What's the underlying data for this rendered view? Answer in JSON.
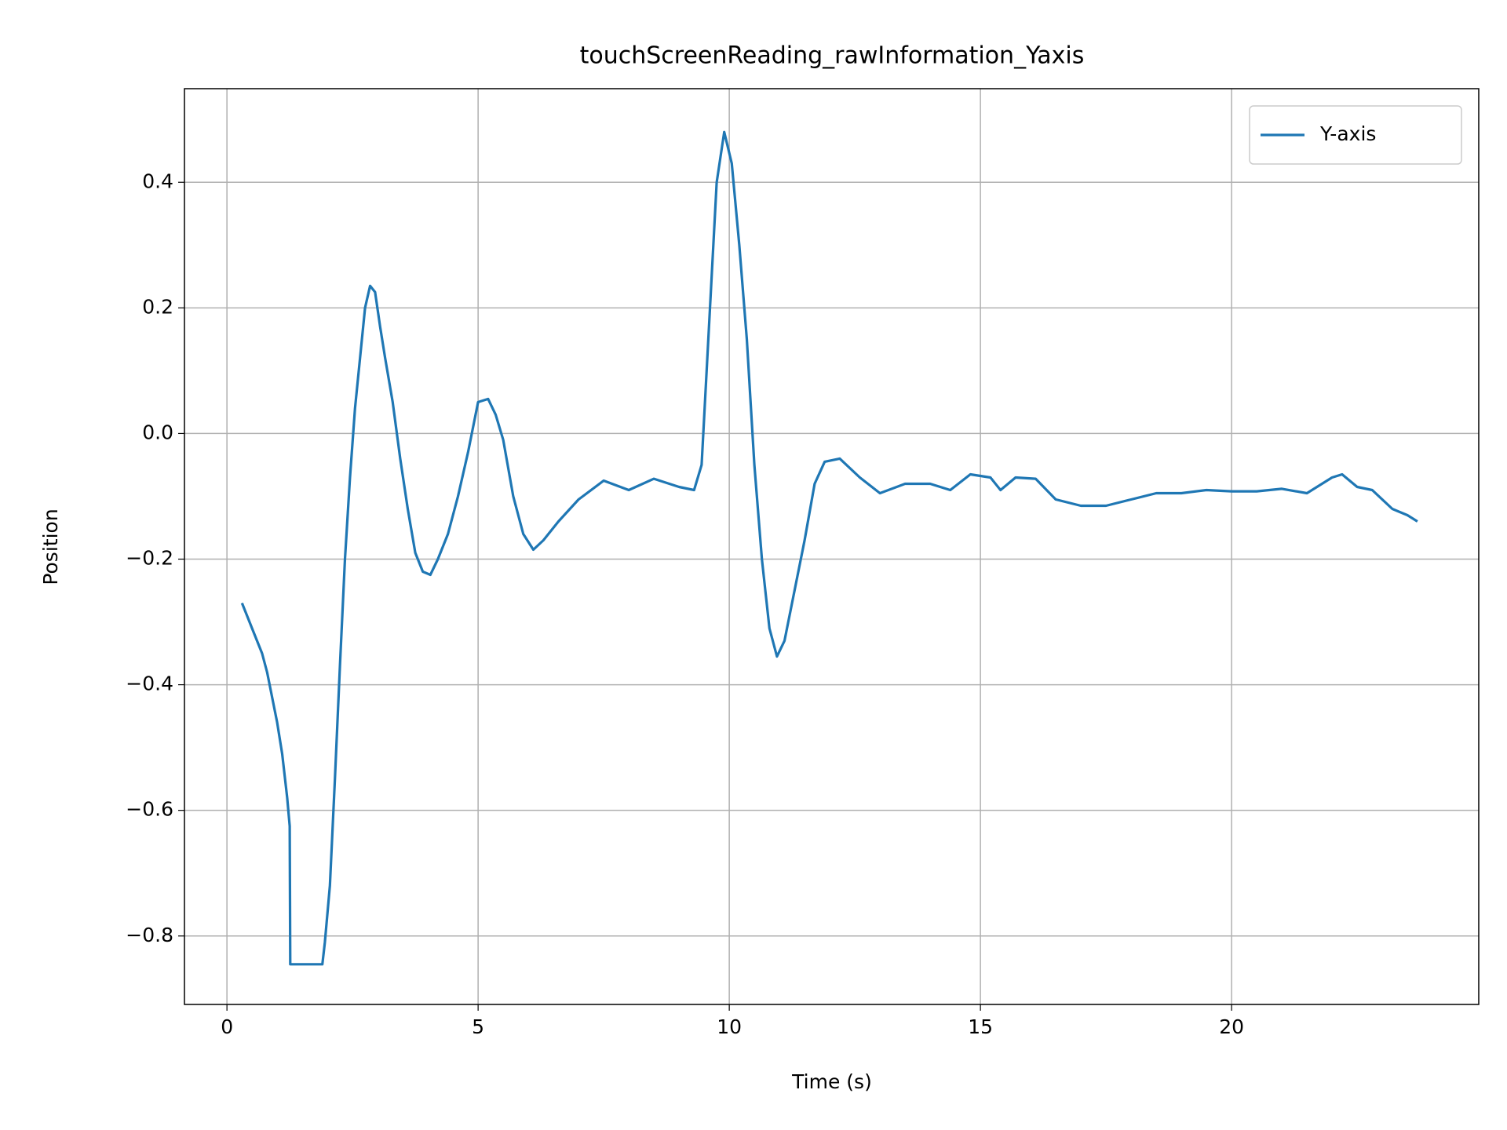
{
  "chart_data": {
    "type": "line",
    "title": "touchScreenReading_rawInformation_Yaxis",
    "x_label": "Time (s)",
    "y_label": "Position",
    "xlim": [
      -0.846,
      24.92
    ],
    "ylim": [
      -0.909,
      0.549
    ],
    "xticks": [
      0,
      5,
      10,
      15,
      20
    ],
    "yticks": [
      {
        "value": -0.8,
        "label": "−0.8"
      },
      {
        "value": -0.6,
        "label": "−0.6"
      },
      {
        "value": -0.4,
        "label": "−0.4"
      },
      {
        "value": -0.2,
        "label": "−0.2"
      },
      {
        "value": 0,
        "label": "0.0"
      },
      0.2,
      0.4
    ],
    "grid": true,
    "legend": "upper right",
    "x": [
      0.3,
      0.4,
      0.5,
      0.6,
      0.7,
      0.8,
      0.9,
      1.0,
      1.1,
      1.2,
      1.25,
      1.26,
      1.9,
      1.95,
      2.05,
      2.15,
      2.25,
      2.35,
      2.45,
      2.55,
      2.65,
      2.75,
      2.85,
      2.95,
      3.05,
      3.15,
      3.3,
      3.45,
      3.6,
      3.75,
      3.9,
      4.05,
      4.2,
      4.4,
      4.6,
      4.8,
      5.0,
      5.2,
      5.35,
      5.5,
      5.7,
      5.9,
      6.1,
      6.3,
      6.6,
      7.0,
      7.5,
      8.0,
      8.5,
      9.0,
      9.3,
      9.45,
      9.55,
      9.65,
      9.75,
      9.9,
      10.05,
      10.2,
      10.35,
      10.5,
      10.65,
      10.8,
      10.95,
      11.1,
      11.3,
      11.5,
      11.7,
      11.9,
      12.2,
      12.6,
      13.0,
      13.5,
      14.0,
      14.4,
      14.8,
      15.2,
      15.4,
      15.7,
      16.1,
      16.5,
      17.0,
      17.5,
      18.0,
      18.5,
      19.0,
      19.5,
      20.0,
      20.5,
      21.0,
      21.5,
      22.0,
      22.2,
      22.5,
      22.8,
      23.2,
      23.5,
      23.7
    ],
    "series": [
      {
        "name": "Y-axis",
        "color": "#1f77b4",
        "values": [
          -0.27,
          -0.29,
          -0.31,
          -0.33,
          -0.35,
          -0.38,
          -0.42,
          -0.46,
          -0.51,
          -0.58,
          -0.625,
          -0.845,
          -0.845,
          -0.81,
          -0.72,
          -0.55,
          -0.37,
          -0.2,
          -0.07,
          0.04,
          0.12,
          0.2,
          0.235,
          0.225,
          0.17,
          0.12,
          0.05,
          -0.04,
          -0.12,
          -0.19,
          -0.22,
          -0.225,
          -0.2,
          -0.16,
          -0.1,
          -0.03,
          0.05,
          0.055,
          0.03,
          -0.01,
          -0.1,
          -0.16,
          -0.185,
          -0.17,
          -0.14,
          -0.105,
          -0.075,
          -0.09,
          -0.072,
          -0.085,
          -0.09,
          -0.05,
          0.1,
          0.25,
          0.4,
          0.48,
          0.43,
          0.3,
          0.15,
          -0.05,
          -0.2,
          -0.31,
          -0.355,
          -0.33,
          -0.25,
          -0.17,
          -0.08,
          -0.045,
          -0.04,
          -0.07,
          -0.095,
          -0.08,
          -0.08,
          -0.09,
          -0.065,
          -0.07,
          -0.09,
          -0.07,
          -0.072,
          -0.105,
          -0.115,
          -0.115,
          -0.105,
          -0.095,
          -0.095,
          -0.09,
          -0.092,
          -0.092,
          -0.088,
          -0.095,
          -0.07,
          -0.065,
          -0.085,
          -0.09,
          -0.12,
          -0.13,
          -0.14
        ]
      }
    ]
  }
}
